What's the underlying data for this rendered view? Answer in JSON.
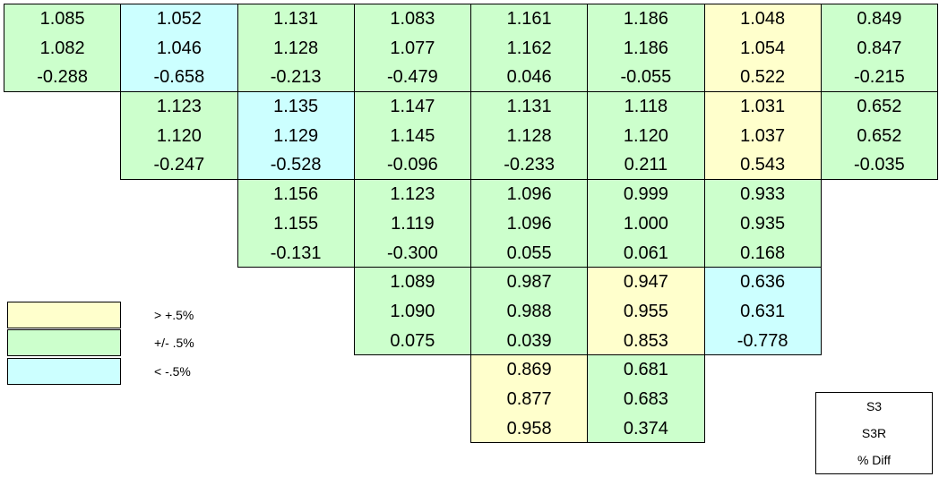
{
  "table": {
    "rows": [
      [
        {
          "fill": "#ccffcc",
          "values": [
            "1.085",
            "1.082",
            "-0.288"
          ]
        },
        {
          "fill": "#ccffff",
          "values": [
            "1.052",
            "1.046",
            "-0.658"
          ]
        },
        {
          "fill": "#ccffcc",
          "values": [
            "1.131",
            "1.128",
            "-0.213"
          ]
        },
        {
          "fill": "#ccffcc",
          "values": [
            "1.083",
            "1.077",
            "-0.479"
          ]
        },
        {
          "fill": "#ccffcc",
          "values": [
            "1.161",
            "1.162",
            "0.046"
          ]
        },
        {
          "fill": "#ccffcc",
          "values": [
            "1.186",
            "1.186",
            "-0.055"
          ]
        },
        {
          "fill": "#ffffcc",
          "values": [
            "1.048",
            "1.054",
            "0.522"
          ]
        },
        {
          "fill": "#ccffcc",
          "values": [
            "0.849",
            "0.847",
            "-0.215"
          ]
        }
      ],
      [
        null,
        {
          "fill": "#ccffcc",
          "values": [
            "1.123",
            "1.120",
            "-0.247"
          ]
        },
        {
          "fill": "#ccffff",
          "values": [
            "1.135",
            "1.129",
            "-0.528"
          ]
        },
        {
          "fill": "#ccffcc",
          "values": [
            "1.147",
            "1.145",
            "-0.096"
          ]
        },
        {
          "fill": "#ccffcc",
          "values": [
            "1.131",
            "1.128",
            "-0.233"
          ]
        },
        {
          "fill": "#ccffcc",
          "values": [
            "1.118",
            "1.120",
            "0.211"
          ]
        },
        {
          "fill": "#ffffcc",
          "values": [
            "1.031",
            "1.037",
            "0.543"
          ]
        },
        {
          "fill": "#ccffcc",
          "values": [
            "0.652",
            "0.652",
            "-0.035"
          ]
        }
      ],
      [
        null,
        null,
        {
          "fill": "#ccffcc",
          "values": [
            "1.156",
            "1.155",
            "-0.131"
          ]
        },
        {
          "fill": "#ccffcc",
          "values": [
            "1.123",
            "1.119",
            "-0.300"
          ]
        },
        {
          "fill": "#ccffcc",
          "values": [
            "1.096",
            "1.096",
            "0.055"
          ]
        },
        {
          "fill": "#ccffcc",
          "values": [
            "0.999",
            "1.000",
            "0.061"
          ]
        },
        {
          "fill": "#ccffcc",
          "values": [
            "0.933",
            "0.935",
            "0.168"
          ]
        }
      ],
      [
        null,
        null,
        null,
        {
          "fill": "#ccffcc",
          "values": [
            "1.089",
            "1.090",
            "0.075"
          ]
        },
        {
          "fill": "#ccffcc",
          "values": [
            "0.987",
            "0.988",
            "0.039"
          ]
        },
        {
          "fill": "#ffffcc",
          "values": [
            "0.947",
            "0.955",
            "0.853"
          ]
        },
        {
          "fill": "#ccffff",
          "values": [
            "0.636",
            "0.631",
            "-0.778"
          ]
        }
      ],
      [
        null,
        null,
        null,
        null,
        {
          "fill": "#ffffcc",
          "values": [
            "0.869",
            "0.877",
            "0.958"
          ]
        },
        {
          "fill": "#ccffcc",
          "values": [
            "0.681",
            "0.683",
            "0.374"
          ]
        }
      ]
    ]
  },
  "legend": [
    {
      "fill": "#ffffcc",
      "label": "> +.5%"
    },
    {
      "fill": "#ccffcc",
      "label": "+/- .5%"
    },
    {
      "fill": "#ccffff",
      "label": "< -.5%"
    }
  ],
  "key": [
    "S3",
    "S3R",
    "% Diff"
  ]
}
